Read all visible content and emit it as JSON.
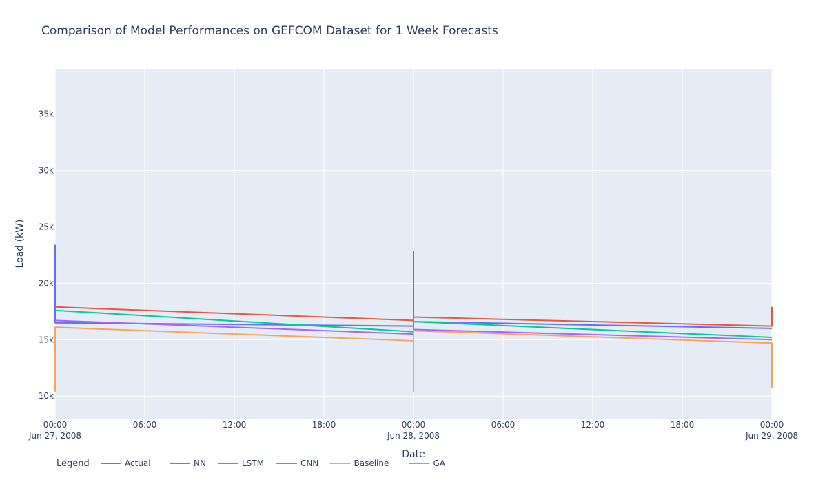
{
  "chart_data": {
    "type": "line",
    "title": "Comparison of Model Performances on GEFCOM Dataset for 1 Week Forecasts",
    "xlabel": "Date",
    "ylabel": "Load (kW)",
    "xlim": [
      "2008-06-27 00:00",
      "2008-06-29 00:00"
    ],
    "ylim": [
      8000,
      39000
    ],
    "yticks": [
      10000,
      15000,
      20000,
      25000,
      30000,
      35000
    ],
    "ytick_labels": [
      "10k",
      "15k",
      "20k",
      "25k",
      "30k",
      "35k"
    ],
    "xticks": [
      {
        "t": "2008-06-27 00:00",
        "label": "00:00",
        "sub": "Jun 27, 2008"
      },
      {
        "t": "2008-06-27 06:00",
        "label": "06:00",
        "sub": ""
      },
      {
        "t": "2008-06-27 12:00",
        "label": "12:00",
        "sub": ""
      },
      {
        "t": "2008-06-27 18:00",
        "label": "18:00",
        "sub": ""
      },
      {
        "t": "2008-06-28 00:00",
        "label": "00:00",
        "sub": "Jun 28, 2008"
      },
      {
        "t": "2008-06-28 06:00",
        "label": "06:00",
        "sub": ""
      },
      {
        "t": "2008-06-28 12:00",
        "label": "12:00",
        "sub": ""
      },
      {
        "t": "2008-06-28 18:00",
        "label": "18:00",
        "sub": ""
      },
      {
        "t": "2008-06-29 00:00",
        "label": "00:00",
        "sub": "Jun 29, 2008"
      }
    ],
    "grid": true,
    "legend_title": "Legend",
    "legend_position": "bottom-left",
    "series": [
      {
        "name": "Actual",
        "color": "#636efa",
        "points": [
          [
            "2008-06-27 00:00",
            23400
          ],
          [
            "2008-06-27 00:00",
            16500
          ],
          [
            "2008-06-28 00:00",
            16200
          ],
          [
            "2008-06-28 00:00",
            22800
          ],
          [
            "2008-06-28 00:00",
            16600
          ],
          [
            "2008-06-29 00:00",
            16000
          ]
        ]
      },
      {
        "name": "NN",
        "color": "#ef553b",
        "points": [
          [
            "2008-06-27 00:00",
            17900
          ],
          [
            "2008-06-28 00:00",
            16700
          ],
          [
            "2008-06-28 00:00",
            17500
          ],
          [
            "2008-06-28 00:00",
            17000
          ],
          [
            "2008-06-29 00:00",
            16200
          ],
          [
            "2008-06-29 00:00",
            17900
          ]
        ]
      },
      {
        "name": "LSTM",
        "color": "#00cc96",
        "points": [
          [
            "2008-06-27 00:00",
            17600
          ],
          [
            "2008-06-28 00:00",
            15700
          ],
          [
            "2008-06-28 00:00",
            16600
          ],
          [
            "2008-06-29 00:00",
            15200
          ]
        ]
      },
      {
        "name": "CNN",
        "color": "#ab63fa",
        "points": [
          [
            "2008-06-27 00:00",
            16700
          ],
          [
            "2008-06-28 00:00",
            15500
          ],
          [
            "2008-06-28 00:00",
            15900
          ],
          [
            "2008-06-29 00:00",
            15000
          ]
        ]
      },
      {
        "name": "Baseline",
        "color": "#ffa15a",
        "points": [
          [
            "2008-06-27 00:00",
            10400
          ],
          [
            "2008-06-27 00:00",
            16100
          ],
          [
            "2008-06-28 00:00",
            14900
          ],
          [
            "2008-06-28 00:00",
            10400
          ],
          [
            "2008-06-28 00:00",
            15800
          ],
          [
            "2008-06-29 00:00",
            14700
          ],
          [
            "2008-06-29 00:00",
            10700
          ]
        ]
      },
      {
        "name": "GA",
        "color": "#19d3f3",
        "points": []
      }
    ]
  }
}
